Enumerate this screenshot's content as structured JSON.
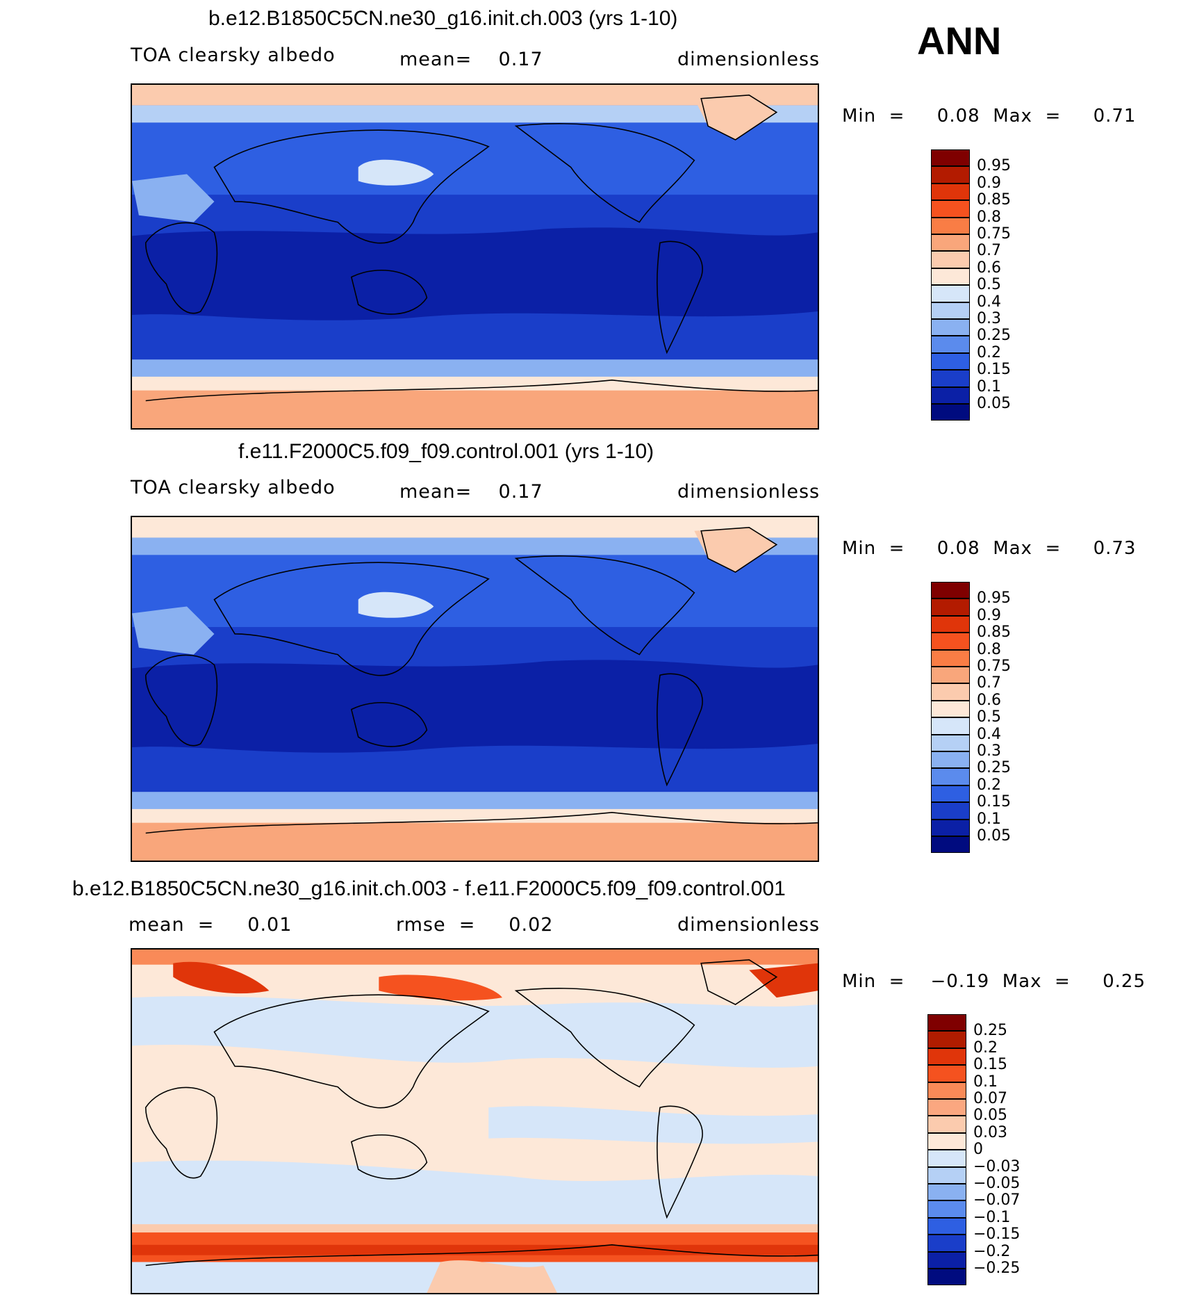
{
  "season": "ANN",
  "panels": [
    {
      "id": "p1",
      "title": "b.e12.B1850C5CN.ne30_g16.init.ch.003 (yrs 1-10)",
      "left_label": "TOA clearsky albedo",
      "mid_label": "mean=    0.17",
      "right_label": "dimensionless",
      "minmax": "Min  =     0.08  Max  =     0.71",
      "levels": [
        "0.95",
        "0.9",
        "0.85",
        "0.8",
        "0.75",
        "0.7",
        "0.6",
        "0.5",
        "0.4",
        "0.3",
        "0.25",
        "0.2",
        "0.15",
        "0.1",
        "0.05"
      ],
      "palette": "abs"
    },
    {
      "id": "p2",
      "title": "f.e11.F2000C5.f09_f09.control.001 (yrs 1-10)",
      "left_label": "TOA clearsky albedo",
      "mid_label": "mean=    0.17",
      "right_label": "dimensionless",
      "minmax": "Min  =     0.08  Max  =     0.73",
      "levels": [
        "0.95",
        "0.9",
        "0.85",
        "0.8",
        "0.75",
        "0.7",
        "0.6",
        "0.5",
        "0.4",
        "0.3",
        "0.25",
        "0.2",
        "0.15",
        "0.1",
        "0.05"
      ],
      "palette": "abs"
    },
    {
      "id": "p3",
      "title": "b.e12.B1850C5CN.ne30_g16.init.ch.003 - f.e11.F2000C5.f09_f09.control.001",
      "left_label": "mean  =     0.01",
      "mid_label": "rmse  =     0.02",
      "right_label": "dimensionless",
      "minmax": "Min  =    −0.19  Max  =     0.25",
      "levels": [
        "0.25",
        "0.2",
        "0.15",
        "0.1",
        "0.07",
        "0.05",
        "0.03",
        "0",
        "−0.03",
        "−0.05",
        "−0.07",
        "−0.1",
        "−0.15",
        "−0.2",
        "−0.25"
      ],
      "palette": "diff"
    }
  ],
  "chart_data": [
    {
      "type": "heatmap",
      "title": "b.e12.B1850C5CN.ne30_g16.init.ch.003 (yrs 1-10)",
      "variable": "TOA clearsky albedo",
      "units": "dimensionless",
      "mean": 0.17,
      "min": 0.08,
      "max": 0.71,
      "contour_levels": [
        0.05,
        0.1,
        0.15,
        0.2,
        0.25,
        0.3,
        0.4,
        0.5,
        0.6,
        0.7,
        0.75,
        0.8,
        0.85,
        0.9,
        0.95
      ]
    },
    {
      "type": "heatmap",
      "title": "f.e11.F2000C5.f09_f09.control.001 (yrs 1-10)",
      "variable": "TOA clearsky albedo",
      "units": "dimensionless",
      "mean": 0.17,
      "min": 0.08,
      "max": 0.73,
      "contour_levels": [
        0.05,
        0.1,
        0.15,
        0.2,
        0.25,
        0.3,
        0.4,
        0.5,
        0.6,
        0.7,
        0.75,
        0.8,
        0.85,
        0.9,
        0.95
      ]
    },
    {
      "type": "heatmap",
      "title": "b.e12.B1850C5CN.ne30_g16.init.ch.003 - f.e11.F2000C5.f09_f09.control.001",
      "units": "dimensionless",
      "mean": 0.01,
      "rmse": 0.02,
      "min": -0.19,
      "max": 0.25,
      "contour_levels": [
        -0.25,
        -0.2,
        -0.15,
        -0.1,
        -0.07,
        -0.05,
        -0.03,
        0,
        0.03,
        0.05,
        0.07,
        0.1,
        0.15,
        0.2,
        0.25
      ]
    }
  ],
  "colors": {
    "abs": [
      "#7f0000",
      "#b31b00",
      "#e0350a",
      "#f5521f",
      "#f97d45",
      "#f9a67b",
      "#fbcbae",
      "#fde8d8",
      "#d6e6f9",
      "#b5d0f5",
      "#8ab1f1",
      "#5b8bed",
      "#2e5fe2",
      "#1a3ec9",
      "#0b20a6",
      "#000b7f"
    ],
    "diff": [
      "#7f0000",
      "#b01c00",
      "#e0350a",
      "#f5521f",
      "#f98a58",
      "#faa780",
      "#fbcbae",
      "#fde8d8",
      "#d6e6f9",
      "#b5d0f5",
      "#8ab1f1",
      "#5b8bed",
      "#2e5fe2",
      "#1a3ec9",
      "#0b20a6",
      "#000b7f"
    ]
  }
}
